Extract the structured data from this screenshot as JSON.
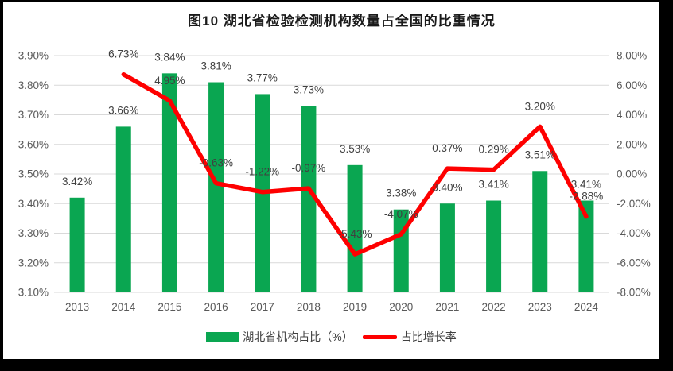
{
  "chart_data": {
    "type": "bar",
    "combo": "bar+line",
    "title": "图10 湖北省检验检测机构数量占全国的比重情况",
    "categories": [
      "2013",
      "2014",
      "2015",
      "2016",
      "2017",
      "2018",
      "2019",
      "2020",
      "2021",
      "2022",
      "2023",
      "2024"
    ],
    "series": [
      {
        "name": "湖北省机构占比（%）",
        "type": "bar",
        "axis": "left",
        "color": "#0aa651",
        "values": [
          3.42,
          3.66,
          3.84,
          3.81,
          3.77,
          3.73,
          3.53,
          3.38,
          3.4,
          3.41,
          3.51,
          3.41
        ],
        "labels": [
          "3.42%",
          "3.66%",
          "3.84%",
          "3.81%",
          "3.77%",
          "3.73%",
          "3.53%",
          "3.38%",
          "3.40%",
          "3.41%",
          "3.51%",
          "3.41%"
        ]
      },
      {
        "name": "占比增长率",
        "type": "line",
        "axis": "right",
        "color": "#fe0000",
        "values": [
          null,
          6.73,
          4.95,
          -0.63,
          -1.22,
          -0.97,
          -5.43,
          -4.07,
          0.37,
          0.29,
          3.2,
          -2.88
        ],
        "labels": [
          "",
          "6.73%",
          "4.95%",
          "-0.63%",
          "-1.22%",
          "-0.97%",
          "-5.43%",
          "-4.07%",
          "0.37%",
          "0.29%",
          "3.20%",
          "-2.88%"
        ]
      }
    ],
    "left_axis": {
      "min": 3.1,
      "max": 3.9,
      "step": 0.1,
      "ticks": [
        "3.90%",
        "3.80%",
        "3.70%",
        "3.60%",
        "3.50%",
        "3.40%",
        "3.30%",
        "3.20%",
        "3.10%"
      ]
    },
    "right_axis": {
      "min": -8.0,
      "max": 8.0,
      "step": 2.0,
      "ticks": [
        "8.00%",
        "6.00%",
        "4.00%",
        "2.00%",
        "0.00%",
        "-2.00%",
        "-4.00%",
        "-6.00%",
        "-8.00%"
      ]
    },
    "grid": true,
    "legend_position": "bottom",
    "colors": {
      "grid": "#d9d9d9",
      "axis_text": "#595959",
      "label_text": "#404040",
      "frame": "#000000",
      "background": "#ffffff"
    }
  }
}
